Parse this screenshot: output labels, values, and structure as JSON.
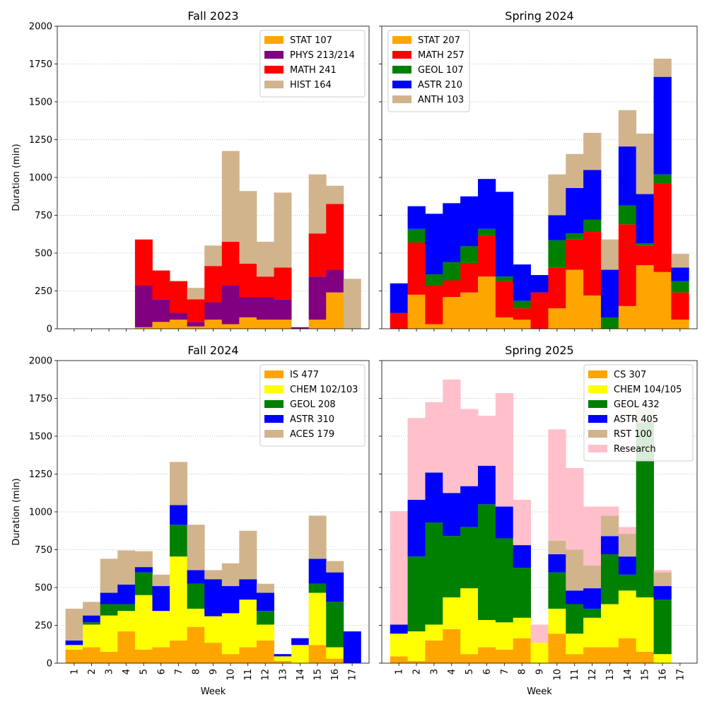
{
  "chart_data": [
    {
      "type": "bar",
      "stacked": true,
      "title": "Fall 2023",
      "ylabel": "Duration (min)",
      "xlabel": "",
      "ylim": [
        0,
        2000
      ],
      "yticks": [
        "0",
        "250",
        "500",
        "750",
        "1000",
        "1250",
        "1500",
        "1750",
        "2000"
      ],
      "grid": "y-dotted",
      "legend": "top-right",
      "categories": [
        "1",
        "2",
        "3",
        "4",
        "5",
        "6",
        "7",
        "8",
        "9",
        "10",
        "11",
        "12",
        "13",
        "14",
        "15",
        "16",
        "17"
      ],
      "series": [
        {
          "name": "STAT 107",
          "color": "#ffa500",
          "values": [
            0,
            0,
            0,
            0,
            10,
            45,
            60,
            15,
            60,
            30,
            75,
            60,
            60,
            0,
            60,
            240,
            0
          ]
        },
        {
          "name": "PHYS 213/214",
          "color": "#800080",
          "values": [
            0,
            0,
            0,
            0,
            275,
            150,
            45,
            30,
            115,
            255,
            135,
            150,
            135,
            10,
            285,
            150,
            0
          ]
        },
        {
          "name": "MATH 241",
          "color": "#ff0000",
          "values": [
            0,
            0,
            0,
            0,
            305,
            190,
            210,
            150,
            240,
            290,
            220,
            135,
            210,
            0,
            285,
            435,
            0
          ]
        },
        {
          "name": "HIST 164",
          "color": "#d2b48c",
          "values": [
            0,
            0,
            0,
            0,
            0,
            0,
            0,
            75,
            135,
            600,
            480,
            230,
            495,
            0,
            390,
            120,
            330
          ]
        }
      ]
    },
    {
      "type": "bar",
      "stacked": true,
      "title": "Spring 2024",
      "ylabel": "",
      "xlabel": "",
      "ylim": [
        0,
        2000
      ],
      "grid": "y-dotted",
      "legend": "top-left",
      "categories": [
        "1",
        "2",
        "3",
        "4",
        "5",
        "6",
        "7",
        "8",
        "9",
        "10",
        "11",
        "12",
        "13",
        "14",
        "15",
        "16",
        "17"
      ],
      "series": [
        {
          "name": "STAT 207",
          "color": "#ffa500",
          "values": [
            0,
            225,
            30,
            210,
            240,
            345,
            75,
            60,
            0,
            135,
            390,
            220,
            0,
            150,
            420,
            375,
            60
          ]
        },
        {
          "name": "MATH 257",
          "color": "#ff0000",
          "values": [
            105,
            345,
            255,
            110,
            195,
            270,
            240,
            75,
            240,
            270,
            200,
            420,
            0,
            540,
            130,
            585,
            180
          ]
        },
        {
          "name": "GEOL 107",
          "color": "#008000",
          "values": [
            0,
            90,
            75,
            120,
            110,
            45,
            30,
            50,
            0,
            180,
            40,
            80,
            75,
            125,
            15,
            60,
            75
          ]
        },
        {
          "name": "ASTR 210",
          "color": "#0000ff",
          "values": [
            195,
            150,
            400,
            390,
            330,
            330,
            560,
            240,
            115,
            165,
            300,
            330,
            315,
            390,
            325,
            645,
            90
          ]
        },
        {
          "name": "ANTH 103",
          "color": "#d2b48c",
          "values": [
            0,
            0,
            0,
            0,
            0,
            0,
            0,
            0,
            0,
            270,
            225,
            245,
            200,
            240,
            400,
            120,
            90
          ]
        }
      ]
    },
    {
      "type": "bar",
      "stacked": true,
      "title": "Fall 2024",
      "ylabel": "Duration (min)",
      "xlabel": "Week",
      "ylim": [
        0,
        2000
      ],
      "grid": "y-dotted",
      "legend": "top-right",
      "categories": [
        "1",
        "2",
        "3",
        "4",
        "5",
        "6",
        "7",
        "8",
        "9",
        "10",
        "11",
        "12",
        "13",
        "14",
        "15",
        "16",
        "17"
      ],
      "series": [
        {
          "name": "IS 477",
          "color": "#ffa500",
          "values": [
            90,
            105,
            75,
            210,
            90,
            105,
            150,
            240,
            135,
            60,
            105,
            150,
            15,
            0,
            120,
            30,
            0
          ]
        },
        {
          "name": "CHEM 102/103",
          "color": "#ffff00",
          "values": [
            30,
            150,
            240,
            135,
            360,
            240,
            555,
            120,
            175,
            270,
            315,
            105,
            30,
            120,
            345,
            75,
            0
          ]
        },
        {
          "name": "GEOL 208",
          "color": "#008000",
          "values": [
            0,
            15,
            75,
            45,
            150,
            0,
            210,
            165,
            0,
            0,
            0,
            90,
            0,
            0,
            60,
            300,
            0
          ]
        },
        {
          "name": "ASTR 310",
          "color": "#0000ff",
          "values": [
            30,
            45,
            75,
            130,
            35,
            165,
            130,
            90,
            245,
            180,
            135,
            120,
            15,
            45,
            165,
            195,
            210
          ]
        },
        {
          "name": "ACES 179",
          "color": "#d2b48c",
          "values": [
            210,
            90,
            225,
            225,
            105,
            75,
            285,
            300,
            60,
            150,
            320,
            60,
            0,
            0,
            285,
            75,
            0
          ]
        }
      ]
    },
    {
      "type": "bar",
      "stacked": true,
      "title": "Spring 2025",
      "ylabel": "",
      "xlabel": "Week",
      "ylim": [
        0,
        2000
      ],
      "grid": "y-dotted",
      "legend": "top-right",
      "categories": [
        "1",
        "2",
        "3",
        "4",
        "5",
        "6",
        "7",
        "8",
        "9",
        "10",
        "11",
        "12",
        "13",
        "14",
        "15",
        "16",
        "17"
      ],
      "series": [
        {
          "name": "CS 307",
          "color": "#ffa500",
          "values": [
            45,
            15,
            150,
            225,
            60,
            105,
            90,
            165,
            0,
            195,
            60,
            105,
            105,
            165,
            75,
            0,
            0
          ]
        },
        {
          "name": "CHEM 104/105",
          "color": "#ffff00",
          "values": [
            150,
            195,
            105,
            210,
            435,
            180,
            180,
            135,
            135,
            165,
            135,
            195,
            285,
            315,
            360,
            60,
            0
          ]
        },
        {
          "name": "GEOL 432",
          "color": "#008000",
          "values": [
            0,
            495,
            675,
            405,
            405,
            765,
            555,
            330,
            0,
            240,
            195,
            60,
            330,
            105,
            1155,
            360,
            0
          ]
        },
        {
          "name": "ASTR 405",
          "color": "#0000ff",
          "values": [
            60,
            375,
            330,
            285,
            270,
            255,
            210,
            150,
            0,
            120,
            90,
            135,
            120,
            120,
            0,
            90,
            0
          ]
        },
        {
          "name": "RST 100",
          "color": "#d2b48c",
          "values": [
            0,
            0,
            0,
            0,
            0,
            0,
            0,
            0,
            0,
            90,
            270,
            150,
            135,
            150,
            90,
            90,
            0
          ]
        },
        {
          "name": "Research",
          "color": "#ffc0cb",
          "values": [
            750,
            540,
            465,
            750,
            510,
            330,
            750,
            300,
            120,
            735,
            540,
            390,
            60,
            45,
            0,
            15,
            0
          ]
        }
      ]
    }
  ]
}
